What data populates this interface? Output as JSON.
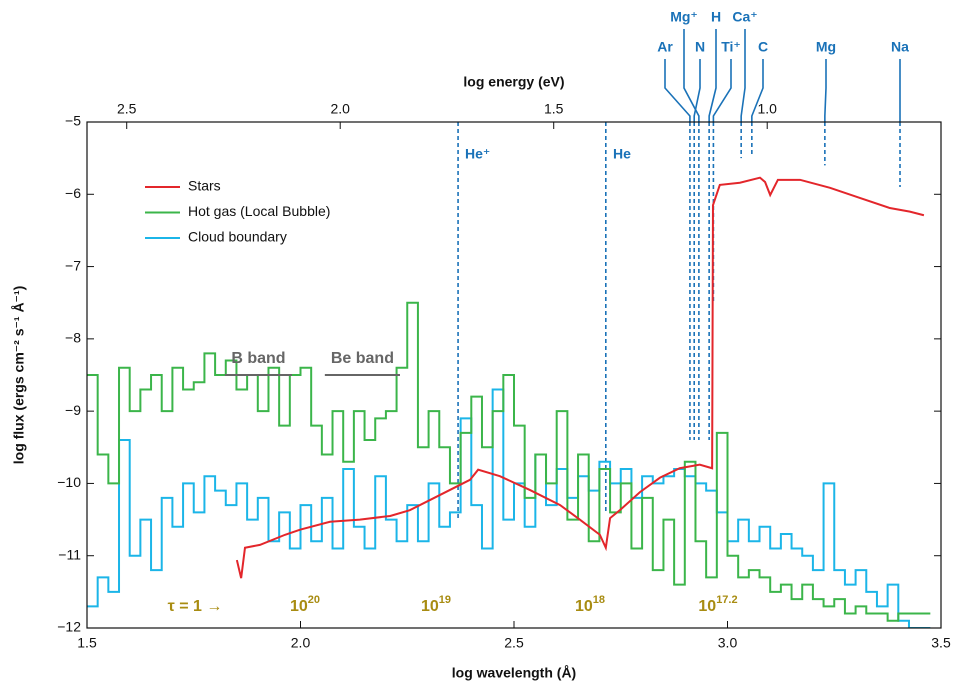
{
  "chart_data": {
    "type": "line",
    "xlabel": "log wavelength (Å)",
    "ylabel": "log flux (ergs cm⁻² s⁻¹ Å⁻¹)",
    "x2label": "log energy (eV)",
    "xlim": [
      1.5,
      3.5
    ],
    "ylim": [
      -12,
      -5
    ],
    "x2lim": [
      2.593,
      0.593
    ],
    "xticks": [
      1.5,
      {
        "value": 2,
        "label": "2.0"
      },
      2.5,
      {
        "value": 3,
        "label": "3.0"
      },
      3.5
    ],
    "x2ticks": [
      2.5,
      {
        "value": 2,
        "label": "2.0"
      },
      1.5,
      {
        "value": 1,
        "label": "1.0"
      }
    ],
    "yticks": [
      {
        "value": -12,
        "label": "−12"
      },
      {
        "value": -11,
        "label": "−11"
      },
      {
        "value": -10,
        "label": "−10"
      },
      {
        "value": -9,
        "label": "−9"
      },
      {
        "value": -8,
        "label": "−8"
      },
      {
        "value": -7,
        "label": "−7"
      },
      {
        "value": -6,
        "label": "−6"
      },
      {
        "value": -5,
        "label": "−5"
      }
    ],
    "legend": "upper left",
    "series": [
      {
        "name": "Stars",
        "color": "#e3262b",
        "x": [
          1.851,
          1.861,
          1.87,
          1.905,
          1.964,
          1.999,
          2.069,
          2.139,
          2.21,
          2.256,
          2.303,
          2.35,
          2.397,
          2.416,
          2.467,
          2.537,
          2.608,
          2.654,
          2.701,
          2.715,
          2.725,
          2.748,
          2.795,
          2.842,
          2.888,
          2.935,
          2.964,
          2.966,
          2.982,
          3.029,
          3.076,
          3.088,
          3.1,
          3.118,
          3.17,
          3.24,
          3.31,
          3.38,
          3.427,
          3.46
        ],
        "values": [
          -11.06,
          -11.31,
          -10.89,
          -10.85,
          -10.71,
          -10.64,
          -10.53,
          -10.5,
          -10.45,
          -10.37,
          -10.23,
          -10.09,
          -9.95,
          -9.81,
          -9.9,
          -10.09,
          -10.3,
          -10.5,
          -10.71,
          -10.89,
          -10.48,
          -10.37,
          -10.12,
          -9.92,
          -9.79,
          -9.74,
          -9.79,
          -6.15,
          -5.87,
          -5.84,
          -5.77,
          -5.83,
          -6.01,
          -5.8,
          -5.8,
          -5.91,
          -6.05,
          -6.19,
          -6.24,
          -6.29
        ]
      },
      {
        "name": "Hot gas (Local Bubble)",
        "color": "#3bb54a",
        "step": true,
        "x": [
          1.5,
          1.525,
          1.55,
          1.575,
          1.6,
          1.625,
          1.65,
          1.675,
          1.7,
          1.725,
          1.75,
          1.775,
          1.8,
          1.825,
          1.85,
          1.875,
          1.9,
          1.925,
          1.95,
          1.975,
          2,
          2.025,
          2.05,
          2.075,
          2.1,
          2.125,
          2.15,
          2.175,
          2.2,
          2.225,
          2.25,
          2.275,
          2.3,
          2.325,
          2.35,
          2.375,
          2.4,
          2.425,
          2.45,
          2.475,
          2.5,
          2.525,
          2.55,
          2.575,
          2.6,
          2.625,
          2.65,
          2.675,
          2.7,
          2.725,
          2.75,
          2.775,
          2.8,
          2.825,
          2.85,
          2.875,
          2.9,
          2.925,
          2.95,
          2.975,
          3,
          3.025,
          3.05,
          3.075,
          3.1,
          3.125,
          3.15,
          3.175,
          3.2,
          3.225,
          3.25,
          3.275,
          3.3,
          3.325,
          3.35,
          3.375,
          3.4,
          3.425,
          3.45
        ],
        "values": [
          -8.5,
          -9.6,
          -10,
          -8.4,
          -9,
          -8.7,
          -8.5,
          -9,
          -8.4,
          -8.7,
          -8.6,
          -8.2,
          -8.5,
          -8.3,
          -8.7,
          -8.5,
          -9,
          -8.4,
          -9.2,
          -8.5,
          -8.4,
          -9.2,
          -9.6,
          -9,
          -9.7,
          -9,
          -9.4,
          -9.1,
          -9,
          -8.4,
          -7.5,
          -9.5,
          -9,
          -9.5,
          -10,
          -9.3,
          -8.8,
          -9.5,
          -9,
          -8.5,
          -9.2,
          -10.2,
          -9.6,
          -10,
          -9,
          -10.5,
          -9.6,
          -10.8,
          -9.8,
          -10.4,
          -10,
          -10.9,
          -10.2,
          -11.2,
          -10.5,
          -11.4,
          -9.7,
          -10.8,
          -11.3,
          -9.3,
          -11,
          -11.3,
          -11.2,
          -11.3,
          -11.5,
          -11.4,
          -11.6,
          -11.4,
          -11.6,
          -11.7,
          -11.6,
          -11.8,
          -11.7,
          -11.8,
          -11.8,
          -11.9,
          -11.8,
          -11.8,
          -11.8
        ]
      },
      {
        "name": "Cloud boundary",
        "color": "#1bb5e8",
        "step": true,
        "x": [
          1.5,
          1.525,
          1.55,
          1.575,
          1.6,
          1.625,
          1.65,
          1.675,
          1.7,
          1.725,
          1.75,
          1.775,
          1.8,
          1.825,
          1.85,
          1.875,
          1.9,
          1.925,
          1.95,
          1.975,
          2,
          2.025,
          2.05,
          2.075,
          2.1,
          2.125,
          2.15,
          2.175,
          2.2,
          2.225,
          2.25,
          2.275,
          2.3,
          2.325,
          2.35,
          2.375,
          2.4,
          2.425,
          2.45,
          2.475,
          2.5,
          2.525,
          2.55,
          2.575,
          2.6,
          2.625,
          2.65,
          2.675,
          2.7,
          2.725,
          2.75,
          2.775,
          2.8,
          2.825,
          2.85,
          2.875,
          2.9,
          2.925,
          2.95,
          2.975,
          3,
          3.025,
          3.05,
          3.075,
          3.1,
          3.125,
          3.15,
          3.175,
          3.2,
          3.225,
          3.25,
          3.275,
          3.3,
          3.325,
          3.35,
          3.375,
          3.4,
          3.425,
          3.45
        ],
        "values": [
          -11.7,
          -11.3,
          -11.5,
          -9.4,
          -11,
          -10.5,
          -11.2,
          -10.2,
          -10.6,
          -10,
          -10.4,
          -9.9,
          -10.1,
          -10.3,
          -10,
          -10.5,
          -10.2,
          -10.8,
          -10.4,
          -10.9,
          -10.3,
          -10.8,
          -10.2,
          -10.9,
          -9.8,
          -10.6,
          -10.9,
          -9.9,
          -10.5,
          -10.8,
          -10.3,
          -10.8,
          -10,
          -10.6,
          -10.4,
          -9.1,
          -10.3,
          -10.9,
          -8.7,
          -10.5,
          -10,
          -10.6,
          -9.6,
          -10.3,
          -9.8,
          -10.2,
          -9.9,
          -10.1,
          -9.7,
          -10,
          -9.8,
          -10.2,
          -9.9,
          -10,
          -9.9,
          -9.8,
          -9.9,
          -10,
          -10.1,
          -10.4,
          -10.8,
          -10.5,
          -10.8,
          -10.6,
          -10.9,
          -10.7,
          -10.9,
          -11,
          -11.2,
          -10,
          -11.2,
          -11.4,
          -11.2,
          -11.5,
          -11.7,
          -11.4,
          -11.9,
          -12,
          -12
        ]
      }
    ],
    "lines": [
      {
        "label": "He⁺",
        "x": 2.369,
        "ymin": -10.5
      },
      {
        "label": "He",
        "x": 2.715,
        "ymin": -10.4
      },
      {
        "label": "Ar",
        "x": 2.912,
        "ymin": -9.4
      },
      {
        "label": "N",
        "x": 2.922,
        "ymin": -9.4
      },
      {
        "label": "Mg⁺",
        "x": 2.933,
        "ymin": -9.4
      },
      {
        "label": "H",
        "x": 2.957,
        "ymin": -9.4
      },
      {
        "label": "Ti⁺",
        "x": 2.967,
        "ymin": -7.5
      },
      {
        "label": "Ca⁺",
        "x": 3.032,
        "ymin": -5.5
      },
      {
        "label": "C",
        "x": 3.057,
        "ymin": -5.45
      },
      {
        "label": "Mg",
        "x": 3.228,
        "ymin": -5.6
      },
      {
        "label": "Na",
        "x": 3.404,
        "ymin": -5.9
      }
    ],
    "bands": [
      {
        "label": "B band",
        "x": [
          1.823,
          1.98
        ],
        "y": -8.5
      },
      {
        "label": "Be band",
        "x": [
          2.057,
          2.233
        ],
        "y": -8.5
      }
    ],
    "optical_depth": [
      {
        "text": "τ = 1 →"
      },
      {
        "base": "10",
        "exp": "20"
      },
      {
        "base": "10",
        "exp": "19"
      },
      {
        "base": "10",
        "exp": "18"
      },
      {
        "base": "10",
        "exp": "17.2"
      }
    ]
  }
}
